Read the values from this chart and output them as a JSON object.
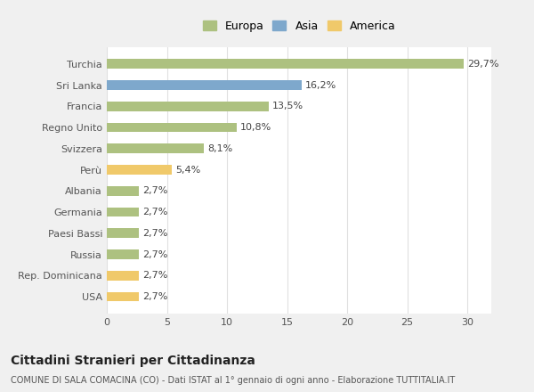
{
  "categories": [
    "USA",
    "Rep. Dominicana",
    "Russia",
    "Paesi Bassi",
    "Germania",
    "Albania",
    "Perù",
    "Svizzera",
    "Regno Unito",
    "Francia",
    "Sri Lanka",
    "Turchia"
  ],
  "values": [
    2.7,
    2.7,
    2.7,
    2.7,
    2.7,
    2.7,
    5.4,
    8.1,
    10.8,
    13.5,
    16.2,
    29.7
  ],
  "labels": [
    "2,7%",
    "2,7%",
    "2,7%",
    "2,7%",
    "2,7%",
    "2,7%",
    "5,4%",
    "8,1%",
    "10,8%",
    "13,5%",
    "16,2%",
    "29,7%"
  ],
  "colors": [
    "#f0c96a",
    "#f0c96a",
    "#adc180",
    "#adc180",
    "#adc180",
    "#adc180",
    "#f0c96a",
    "#adc180",
    "#adc180",
    "#adc180",
    "#7ea8cc",
    "#adc180"
  ],
  "legend": [
    {
      "label": "Europa",
      "color": "#adc180"
    },
    {
      "label": "Asia",
      "color": "#7ea8cc"
    },
    {
      "label": "America",
      "color": "#f0c96a"
    }
  ],
  "title": "Cittadini Stranieri per Cittadinanza",
  "subtitle": "COMUNE DI SALA COMACINA (CO) - Dati ISTAT al 1° gennaio di ogni anno - Elaborazione TUTTITALIA.IT",
  "xlim": [
    0,
    32
  ],
  "xticks": [
    0,
    5,
    10,
    15,
    20,
    25,
    30
  ],
  "bg_color": "#f0f0f0",
  "plot_bg_color": "#ffffff",
  "grid_color": "#e0e0e0",
  "bar_height": 0.45,
  "title_fontsize": 10,
  "subtitle_fontsize": 7,
  "label_fontsize": 8,
  "tick_fontsize": 8,
  "legend_fontsize": 9
}
